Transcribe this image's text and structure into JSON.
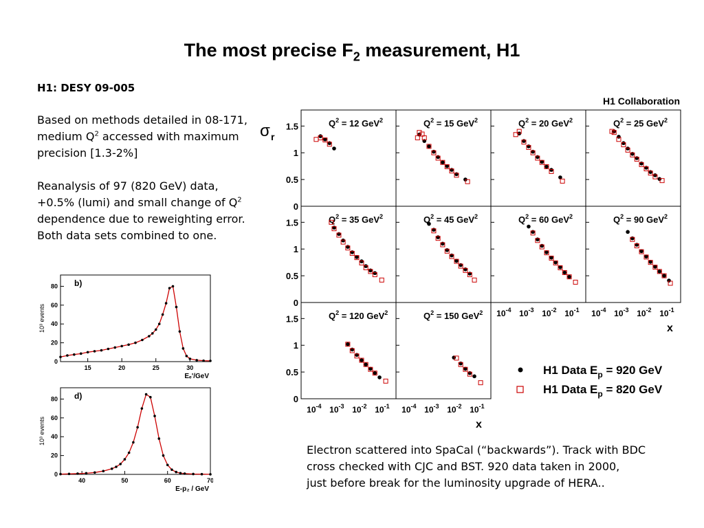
{
  "slide": {
    "title_main": "The most precise F",
    "title_sub": "2",
    "title_tail": " measurement, H1",
    "ref": "H1: DESY 09-005",
    "para1": [
      "Based on methods detailed in 08-171,",
      "medium Q",
      "2",
      " accessed with maximum",
      "precision [1.3-2%]"
    ],
    "para2": [
      "Reanalysis of 97 (820 GeV) data,",
      "+0.5% (lumi) and small change of Q",
      "2",
      "dependence due to reweighting error.",
      "Both data sets combined to one."
    ],
    "bottom": [
      "Electron scattered into SpaCal (“backwards”). Track with BDC",
      "cross checked with CJC and BST. 920 data taken in 2000,",
      "just before break for the luminosity upgrade of HERA.."
    ]
  },
  "chart_data": [
    {
      "type": "scatter",
      "title": "H1 Collaboration",
      "ylabel": "σr",
      "xlabel": "x",
      "x_scale": "log",
      "xlim": [
        4e-05,
        0.3
      ],
      "ylim": [
        0,
        1.8
      ],
      "y_ticks": [
        "0",
        "0.5",
        "1",
        "1.5"
      ],
      "x_ticks": [
        "10-4",
        "10-3",
        "10-2",
        "10-1"
      ],
      "legend": [
        {
          "label": "H1 Data E",
          "sub": "p",
          "tail": " = 920 GeV",
          "marker": "filled-circle",
          "color": "#000000"
        },
        {
          "label": "H1 Data E",
          "sub": "p",
          "tail": " = 820 GeV",
          "marker": "open-square",
          "color": "#cc0000"
        }
      ],
      "panels": [
        {
          "label": "Q2 = 12 GeV2",
          "s920": [
            [
              0.0002,
              1.31
            ],
            [
              0.00032,
              1.25
            ],
            [
              0.0005,
              1.18
            ],
            [
              0.0008,
              1.08
            ]
          ],
          "s820": [
            [
              0.00013,
              1.25
            ],
            [
              0.0002,
              1.28
            ],
            [
              0.00032,
              1.24
            ],
            [
              0.0005,
              1.16
            ]
          ]
        },
        {
          "label": "Q2 = 15 GeV2",
          "s920": [
            [
              0.0003,
              1.34
            ],
            [
              0.0005,
              1.22
            ],
            [
              0.0008,
              1.12
            ],
            [
              0.0013,
              1.02
            ],
            [
              0.002,
              0.92
            ],
            [
              0.0032,
              0.82
            ],
            [
              0.005,
              0.75
            ],
            [
              0.008,
              0.68
            ],
            [
              0.013,
              0.6
            ],
            [
              0.032,
              0.5
            ]
          ],
          "s820": [
            [
              0.00025,
              1.28
            ],
            [
              0.0003,
              1.38
            ],
            [
              0.0004,
              1.35
            ],
            [
              0.0005,
              1.28
            ],
            [
              0.0008,
              1.12
            ],
            [
              0.0013,
              1.0
            ],
            [
              0.002,
              0.9
            ],
            [
              0.0032,
              0.82
            ],
            [
              0.005,
              0.74
            ],
            [
              0.008,
              0.66
            ],
            [
              0.013,
              0.58
            ],
            [
              0.04,
              0.46
            ]
          ]
        },
        {
          "label": "Q2 = 20 GeV2",
          "s920": [
            [
              0.0005,
              1.36
            ],
            [
              0.0008,
              1.22
            ],
            [
              0.0013,
              1.12
            ],
            [
              0.002,
              1.02
            ],
            [
              0.0032,
              0.92
            ],
            [
              0.005,
              0.83
            ],
            [
              0.008,
              0.74
            ],
            [
              0.013,
              0.68
            ],
            [
              0.032,
              0.54
            ]
          ],
          "s820": [
            [
              0.00035,
              1.34
            ],
            [
              0.0005,
              1.4
            ],
            [
              0.0008,
              1.2
            ],
            [
              0.0013,
              1.1
            ],
            [
              0.002,
              1.0
            ],
            [
              0.0032,
              0.9
            ],
            [
              0.005,
              0.82
            ],
            [
              0.008,
              0.74
            ],
            [
              0.013,
              0.65
            ],
            [
              0.04,
              0.47
            ]
          ]
        },
        {
          "label": "Q2 = 25 GeV2",
          "s920": [
            [
              0.0005,
              1.4
            ],
            [
              0.0008,
              1.3
            ],
            [
              0.0013,
              1.18
            ],
            [
              0.002,
              1.08
            ],
            [
              0.0032,
              0.98
            ],
            [
              0.005,
              0.9
            ],
            [
              0.008,
              0.8
            ],
            [
              0.013,
              0.72
            ],
            [
              0.02,
              0.64
            ],
            [
              0.032,
              0.58
            ],
            [
              0.05,
              0.51
            ]
          ],
          "s820": [
            [
              0.0004,
              1.4
            ],
            [
              0.0005,
              1.38
            ],
            [
              0.0008,
              1.25
            ],
            [
              0.0013,
              1.15
            ],
            [
              0.002,
              1.05
            ],
            [
              0.0032,
              0.96
            ],
            [
              0.005,
              0.88
            ],
            [
              0.008,
              0.78
            ],
            [
              0.013,
              0.7
            ],
            [
              0.02,
              0.62
            ],
            [
              0.032,
              0.55
            ],
            [
              0.065,
              0.48
            ]
          ]
        },
        {
          "label": "Q2 = 35 GeV2",
          "s920": [
            [
              0.0008,
              1.4
            ],
            [
              0.0013,
              1.28
            ],
            [
              0.002,
              1.16
            ],
            [
              0.0032,
              1.04
            ],
            [
              0.005,
              0.94
            ],
            [
              0.008,
              0.85
            ],
            [
              0.013,
              0.77
            ],
            [
              0.02,
              0.68
            ],
            [
              0.032,
              0.6
            ],
            [
              0.05,
              0.55
            ]
          ],
          "s820": [
            [
              0.0006,
              1.5
            ],
            [
              0.0008,
              1.38
            ],
            [
              0.0013,
              1.26
            ],
            [
              0.002,
              1.13
            ],
            [
              0.0032,
              1.02
            ],
            [
              0.005,
              0.92
            ],
            [
              0.008,
              0.84
            ],
            [
              0.013,
              0.74
            ],
            [
              0.02,
              0.65
            ],
            [
              0.032,
              0.58
            ],
            [
              0.05,
              0.52
            ],
            [
              0.1,
              0.42
            ]
          ]
        },
        {
          "label": "Q2 = 45 GeV2",
          "s920": [
            [
              0.0008,
              1.47
            ],
            [
              0.0013,
              1.36
            ],
            [
              0.002,
              1.22
            ],
            [
              0.0032,
              1.1
            ],
            [
              0.005,
              0.98
            ],
            [
              0.008,
              0.88
            ],
            [
              0.013,
              0.78
            ],
            [
              0.02,
              0.7
            ],
            [
              0.032,
              0.62
            ],
            [
              0.05,
              0.54
            ]
          ],
          "s820": [
            [
              0.0013,
              1.34
            ],
            [
              0.002,
              1.2
            ],
            [
              0.0032,
              1.08
            ],
            [
              0.005,
              0.96
            ],
            [
              0.008,
              0.86
            ],
            [
              0.013,
              0.77
            ],
            [
              0.02,
              0.68
            ],
            [
              0.032,
              0.6
            ],
            [
              0.05,
              0.52
            ],
            [
              0.08,
              0.42
            ]
          ]
        },
        {
          "label": "Q2 = 60 GeV2",
          "s920": [
            [
              0.0013,
              1.42
            ],
            [
              0.002,
              1.32
            ],
            [
              0.0032,
              1.18
            ],
            [
              0.005,
              1.06
            ],
            [
              0.008,
              0.94
            ],
            [
              0.013,
              0.84
            ],
            [
              0.02,
              0.75
            ],
            [
              0.032,
              0.66
            ],
            [
              0.05,
              0.56
            ],
            [
              0.08,
              0.48
            ]
          ],
          "s820": [
            [
              0.002,
              1.3
            ],
            [
              0.0032,
              1.16
            ],
            [
              0.005,
              1.04
            ],
            [
              0.008,
              0.93
            ],
            [
              0.013,
              0.83
            ],
            [
              0.02,
              0.74
            ],
            [
              0.032,
              0.65
            ],
            [
              0.05,
              0.56
            ],
            [
              0.08,
              0.48
            ],
            [
              0.15,
              0.38
            ]
          ]
        },
        {
          "label": "Q2 = 90 GeV2",
          "s920": [
            [
              0.002,
              1.32
            ],
            [
              0.0032,
              1.2
            ],
            [
              0.005,
              1.08
            ],
            [
              0.008,
              0.96
            ],
            [
              0.013,
              0.86
            ],
            [
              0.02,
              0.76
            ],
            [
              0.032,
              0.67
            ],
            [
              0.05,
              0.58
            ],
            [
              0.08,
              0.5
            ],
            [
              0.13,
              0.41
            ]
          ],
          "s820": [
            [
              0.0032,
              1.18
            ],
            [
              0.005,
              1.06
            ],
            [
              0.008,
              0.95
            ],
            [
              0.013,
              0.85
            ],
            [
              0.02,
              0.75
            ],
            [
              0.032,
              0.66
            ],
            [
              0.05,
              0.58
            ],
            [
              0.08,
              0.5
            ],
            [
              0.15,
              0.36
            ]
          ]
        },
        {
          "label": "Q2 = 120 GeV2",
          "s920": [
            [
              0.0032,
              1.02
            ],
            [
              0.005,
              0.92
            ],
            [
              0.008,
              0.82
            ],
            [
              0.013,
              0.72
            ],
            [
              0.02,
              0.64
            ],
            [
              0.032,
              0.56
            ],
            [
              0.05,
              0.48
            ],
            [
              0.08,
              0.4
            ]
          ],
          "s820": [
            [
              0.0032,
              1.02
            ],
            [
              0.005,
              0.9
            ],
            [
              0.008,
              0.8
            ],
            [
              0.013,
              0.72
            ],
            [
              0.02,
              0.64
            ],
            [
              0.032,
              0.55
            ],
            [
              0.05,
              0.48
            ],
            [
              0.15,
              0.33
            ]
          ]
        },
        {
          "label": "Q2 = 150 GeV2",
          "s920": [
            [
              0.01,
              0.77
            ],
            [
              0.02,
              0.66
            ],
            [
              0.032,
              0.56
            ],
            [
              0.05,
              0.48
            ],
            [
              0.08,
              0.42
            ]
          ],
          "s820": [
            [
              0.013,
              0.76
            ],
            [
              0.02,
              0.64
            ],
            [
              0.032,
              0.55
            ],
            [
              0.05,
              0.46
            ],
            [
              0.15,
              0.3
            ]
          ]
        }
      ]
    },
    {
      "type": "line",
      "panel_tag": "b)",
      "ylabel": "10³ events",
      "xlabel": "Eₑ'/GeV",
      "xlim": [
        11,
        33
      ],
      "ylim": [
        0,
        92
      ],
      "x_ticks": [
        15,
        20,
        25,
        30
      ],
      "y_ticks": [
        0,
        20,
        40,
        60,
        80
      ],
      "series": [
        {
          "marker": "filled-circle",
          "color": "#000000",
          "x": [
            11,
            12,
            13,
            14,
            15,
            16,
            17,
            18,
            19,
            20,
            21,
            22,
            23,
            24,
            24.5,
            25,
            25.5,
            26,
            26.5,
            27,
            27.5,
            28,
            28.5,
            29,
            29.5,
            30,
            31,
            32,
            33
          ],
          "values": [
            5,
            6.5,
            7.5,
            8.5,
            10,
            11,
            12,
            13.5,
            15,
            16.5,
            18,
            20,
            23,
            27,
            30,
            34,
            40,
            50,
            62,
            78,
            80,
            58,
            32,
            14,
            6,
            3,
            1.5,
            1,
            0.8
          ]
        }
      ]
    },
    {
      "type": "line",
      "panel_tag": "d)",
      "ylabel": "10³ events",
      "xlabel": "E-p₂ / GeV",
      "xlim": [
        35,
        70
      ],
      "ylim": [
        0,
        92
      ],
      "x_ticks": [
        40,
        50,
        60,
        70
      ],
      "y_ticks": [
        0,
        20,
        40,
        60,
        80
      ],
      "series": [
        {
          "marker": "filled-circle",
          "color": "#000000",
          "x": [
            35,
            37,
            39,
            41,
            43,
            45,
            47,
            48,
            49,
            50,
            51,
            52,
            53,
            54,
            55,
            56,
            57,
            58,
            59,
            60,
            61,
            62,
            63,
            64,
            66,
            68,
            70
          ],
          "values": [
            0.3,
            0.5,
            0.8,
            1.2,
            2,
            3.5,
            6,
            8,
            11,
            16,
            23,
            34,
            50,
            70,
            85,
            82,
            62,
            38,
            20,
            10,
            5,
            2.5,
            1.3,
            0.8,
            0.4,
            0.2,
            0.1
          ]
        }
      ]
    }
  ]
}
